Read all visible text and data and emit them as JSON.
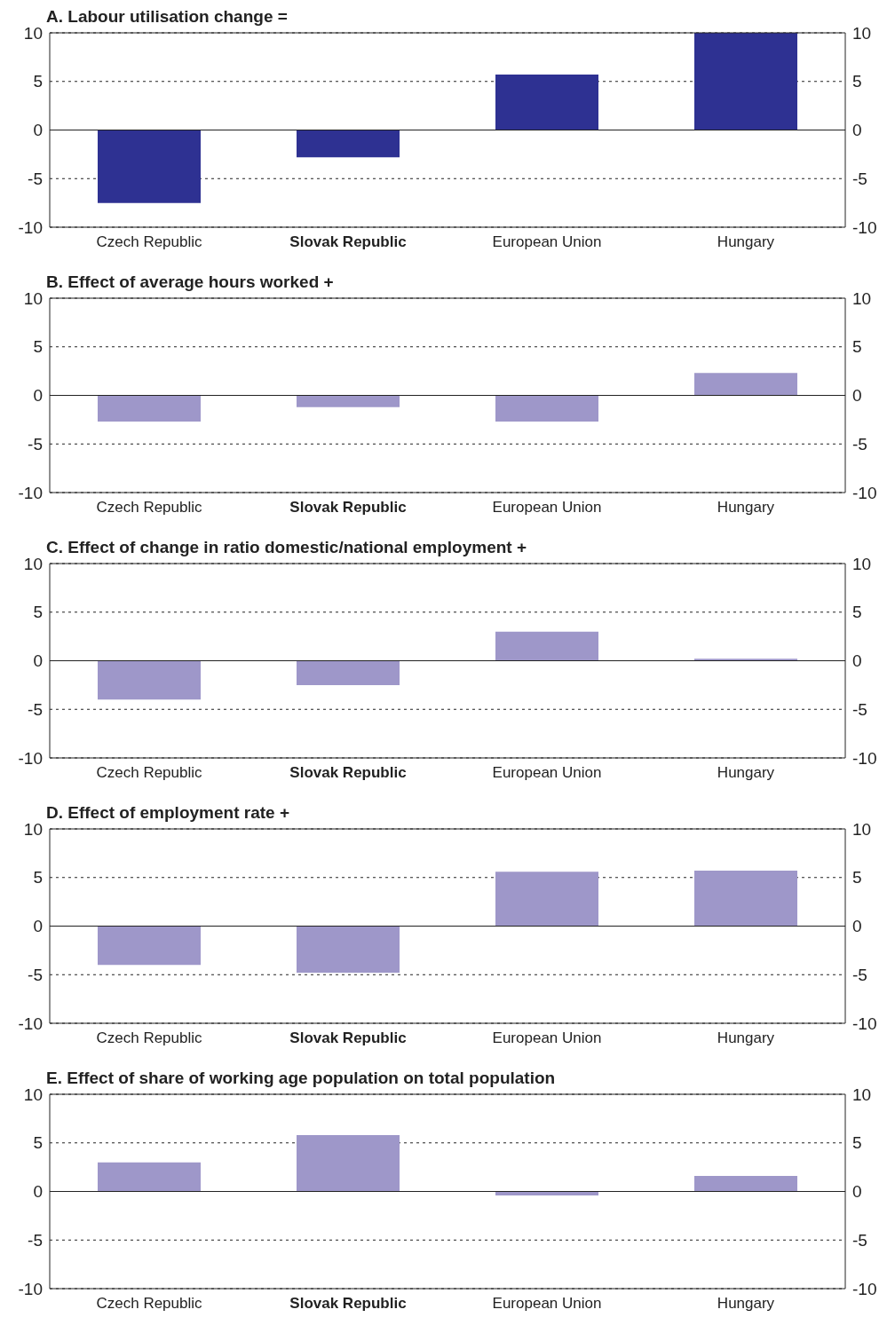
{
  "chart_data": [
    {
      "type": "bar",
      "title": "A. Labour utilisation change =",
      "categories": [
        "Czech Republic",
        "Slovak Republic",
        "European Union",
        "Hungary"
      ],
      "values": [
        -7.5,
        -2.8,
        5.7,
        10
      ],
      "color": "#2e3192",
      "ylim": [
        -10,
        10
      ],
      "yticks": [
        -10,
        -5,
        0,
        5,
        10
      ],
      "y2lim": [
        -10,
        10
      ],
      "y2ticks": [
        -10,
        -5,
        0,
        5,
        10
      ],
      "grid": "y"
    },
    {
      "type": "bar",
      "title": "B. Effect of average hours worked +",
      "categories": [
        "Czech Republic",
        "Slovak Republic",
        "European Union",
        "Hungary"
      ],
      "values": [
        -2.7,
        -1.2,
        -2.7,
        2.3
      ],
      "color": "#9e97c9",
      "ylim": [
        -10,
        10
      ],
      "yticks": [
        -10,
        -5,
        0,
        5,
        10
      ],
      "y2lim": [
        -10,
        10
      ],
      "y2ticks": [
        -10,
        -5,
        0,
        5,
        10
      ],
      "grid": "y"
    },
    {
      "type": "bar",
      "title": "C. Effect of change in ratio domestic/national employment +",
      "categories": [
        "Czech Republic",
        "Slovak Republic",
        "European Union",
        "Hungary"
      ],
      "values": [
        -4.0,
        -2.5,
        3.0,
        0.2
      ],
      "color": "#9e97c9",
      "ylim": [
        -10,
        10
      ],
      "yticks": [
        -10,
        -5,
        0,
        5,
        10
      ],
      "y2lim": [
        -10,
        10
      ],
      "y2ticks": [
        -10,
        -5,
        0,
        5,
        10
      ],
      "grid": "y"
    },
    {
      "type": "bar",
      "title": "D. Effect of employment rate +",
      "categories": [
        "Czech Republic",
        "Slovak Republic",
        "European Union",
        "Hungary"
      ],
      "values": [
        -4.0,
        -4.8,
        5.6,
        5.7
      ],
      "color": "#9e97c9",
      "ylim": [
        -10,
        10
      ],
      "yticks": [
        -10,
        -5,
        0,
        5,
        10
      ],
      "y2lim": [
        -10,
        10
      ],
      "y2ticks": [
        -10,
        -5,
        0,
        5,
        10
      ],
      "grid": "y"
    },
    {
      "type": "bar",
      "title": "E. Effect of share of working age population on total population",
      "categories": [
        "Czech Republic",
        "Slovak Republic",
        "European Union",
        "Hungary"
      ],
      "values": [
        3.0,
        5.8,
        -0.4,
        1.6
      ],
      "color": "#9e97c9",
      "ylim": [
        -10,
        10
      ],
      "yticks": [
        -10,
        -5,
        0,
        5,
        10
      ],
      "y2lim": [
        -10,
        10
      ],
      "y2ticks": [
        -10,
        -5,
        0,
        5,
        10
      ],
      "grid": "y"
    }
  ]
}
